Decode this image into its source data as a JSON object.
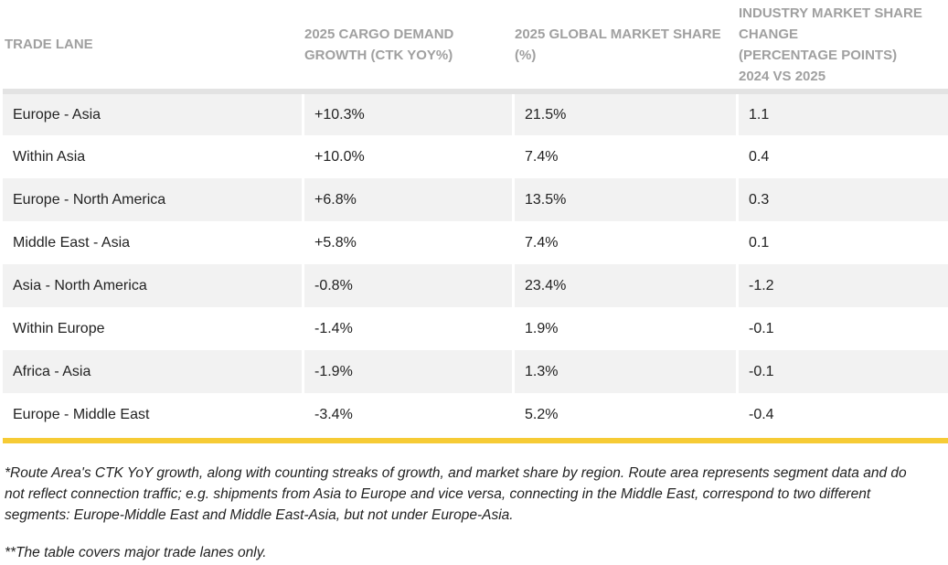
{
  "table": {
    "header": [
      [
        "TRADE LANE"
      ],
      [
        "2025 CARGO DEMAND",
        "GROWTH (CTK YOY%)"
      ],
      [
        "2025 GLOBAL MARKET SHARE",
        "(%)"
      ],
      [
        "INDUSTRY MARKET SHARE",
        "CHANGE",
        "(PERCENTAGE POINTS)",
        "2024 VS 2025"
      ]
    ],
    "rows": [
      [
        "Europe - Asia",
        "+10.3%",
        "21.5%",
        "1.1"
      ],
      [
        "Within Asia",
        "+10.0%",
        "7.4%",
        "0.4"
      ],
      [
        "Europe - North America",
        "+6.8%",
        "13.5%",
        "0.3"
      ],
      [
        "Middle East - Asia",
        "+5.8%",
        "7.4%",
        "0.1"
      ],
      [
        "Asia - North America",
        "-0.8%",
        "23.4%",
        "-1.2"
      ],
      [
        "Within Europe",
        "-1.4%",
        "1.9%",
        "-0.1"
      ],
      [
        "Africa - Asia",
        "-1.9%",
        "1.3%",
        "-0.1"
      ],
      [
        "Europe - Middle East",
        "-3.4%",
        "5.2%",
        "-0.4"
      ]
    ]
  },
  "footnotes": [
    [
      "*Route Area's CTK YoY growth, along with counting streaks of growth, and market share by region. Route area represents segment data and do",
      "not reflect connection traffic; e.g. shipments from Asia to Europe and vice versa, connecting in the Middle East, correspond to two different",
      "segments: Europe-Middle East and Middle East-Asia, but not under Europe-Asia."
    ],
    [
      "**The table covers major trade lanes only."
    ]
  ]
}
